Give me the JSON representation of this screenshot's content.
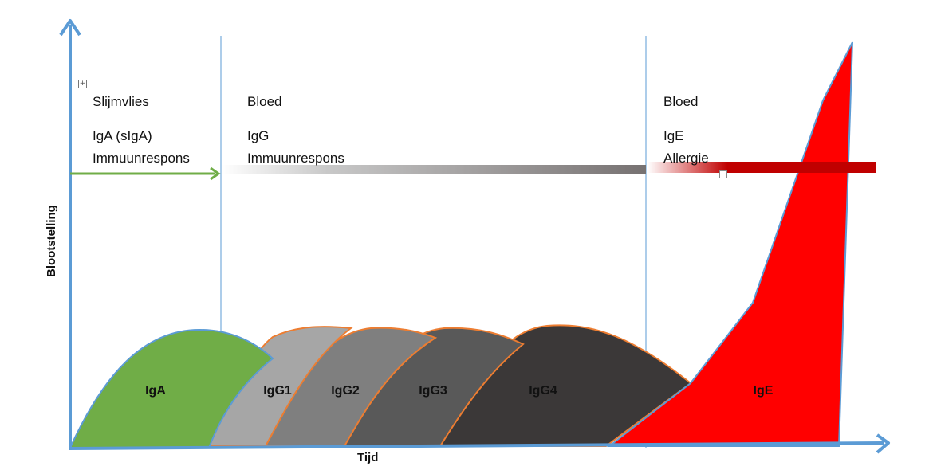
{
  "axes": {
    "y_label": "Blootstelling",
    "x_label": "Tijd"
  },
  "zones": [
    {
      "site": "Slijmvlies",
      "class": "IgA (sIgA)",
      "response": "Immuunrespons"
    },
    {
      "site": "Bloed",
      "class": "IgG",
      "response": "Immuunrespons"
    },
    {
      "site": "Bloed",
      "class": "IgE",
      "response": "Allergie"
    }
  ],
  "shapes": [
    {
      "label": "IgA",
      "color": "#70ad47"
    },
    {
      "label": "IgG1",
      "color": "#a6a6a6"
    },
    {
      "label": "IgG2",
      "color": "#7f7f7f"
    },
    {
      "label": "IgG3",
      "color": "#595959"
    },
    {
      "label": "IgG4",
      "color": "#3b3838"
    },
    {
      "label": "IgE",
      "color": "#ff0000"
    }
  ],
  "colors": {
    "axis": "#5b9bd5",
    "divider": "#5b9bd5",
    "outline_iga": "#5b9bd5",
    "outline_igg": "#ed7d31",
    "iga_arrow": "#70ad47",
    "igg_bar_end": "#767171",
    "ige_bar": "#c00000"
  },
  "icons": {
    "move_handle": "move-handle-icon"
  }
}
